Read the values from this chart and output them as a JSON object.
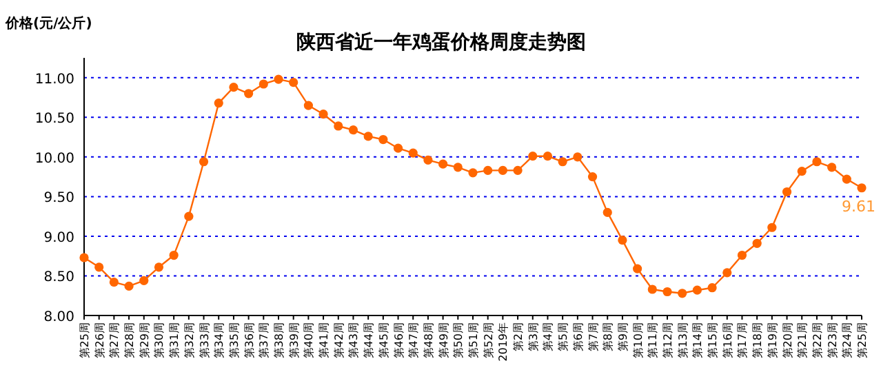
{
  "chart_data": {
    "type": "line",
    "title": "陕西省近一年鸡蛋价格周度走势图",
    "ylabel": "价格(元/公斤)",
    "categories": [
      "第25周",
      "第26周",
      "第27周",
      "第28周",
      "第29周",
      "第30周",
      "第31周",
      "第32周",
      "第33周",
      "第34周",
      "第35周",
      "第36周",
      "第37周",
      "第38周",
      "第39周",
      "第40周",
      "第41周",
      "第42周",
      "第43周",
      "第44周",
      "第45周",
      "第46周",
      "第47周",
      "第48周",
      "第49周",
      "第50周",
      "第51周",
      "第52周",
      "2019年",
      "第2周",
      "第3周",
      "第4周",
      "第5周",
      "第6周",
      "第7周",
      "第8周",
      "第9周",
      "第10周",
      "第11周",
      "第12周",
      "第13周",
      "第14周",
      "第15周",
      "第16周",
      "第17周",
      "第18周",
      "第19周",
      "第20周",
      "第21周",
      "第22周",
      "第23周",
      "第24周",
      "第25周"
    ],
    "series": [
      {
        "color": "#ff6600",
        "values": [
          8.73,
          8.61,
          8.42,
          8.37,
          8.44,
          8.61,
          8.76,
          9.25,
          9.94,
          10.68,
          10.88,
          10.8,
          10.92,
          10.98,
          10.94,
          10.65,
          10.54,
          10.39,
          10.34,
          10.26,
          10.22,
          10.11,
          10.05,
          9.96,
          9.91,
          9.87,
          9.8,
          9.83,
          9.83,
          9.83,
          10.01,
          10.01,
          9.94,
          10.0,
          9.75,
          9.3,
          8.95,
          8.59,
          8.33,
          8.3,
          8.28,
          8.32,
          8.35,
          8.54,
          8.76,
          8.91,
          9.11,
          9.56,
          9.82,
          9.94,
          9.87,
          9.72,
          9.61
        ],
        "value_labels": [
          null,
          null,
          null,
          null,
          null,
          null,
          null,
          null,
          null,
          null,
          null,
          null,
          null,
          null,
          null,
          null,
          null,
          null,
          null,
          null,
          null,
          null,
          null,
          null,
          null,
          null,
          null,
          null,
          null,
          null,
          null,
          null,
          null,
          null,
          null,
          null,
          null,
          null,
          null,
          null,
          null,
          null,
          null,
          null,
          null,
          null,
          null,
          null,
          null,
          null,
          null,
          null,
          "9.61"
        ]
      }
    ],
    "ylim": [
      8,
      11.25
    ],
    "yticks": [
      {
        "value": 8,
        "label": "8.00"
      },
      {
        "value": 8.5,
        "label": "8.50"
      },
      {
        "value": 9,
        "label": "9.00"
      },
      {
        "value": 9.5,
        "label": "9.50"
      },
      {
        "value": 10,
        "label": "10.00"
      },
      {
        "value": 10.5,
        "label": "10.50"
      },
      {
        "value": 11,
        "label": "11.00"
      }
    ],
    "grid": "y",
    "marker": "circle",
    "line_style": "solid"
  }
}
